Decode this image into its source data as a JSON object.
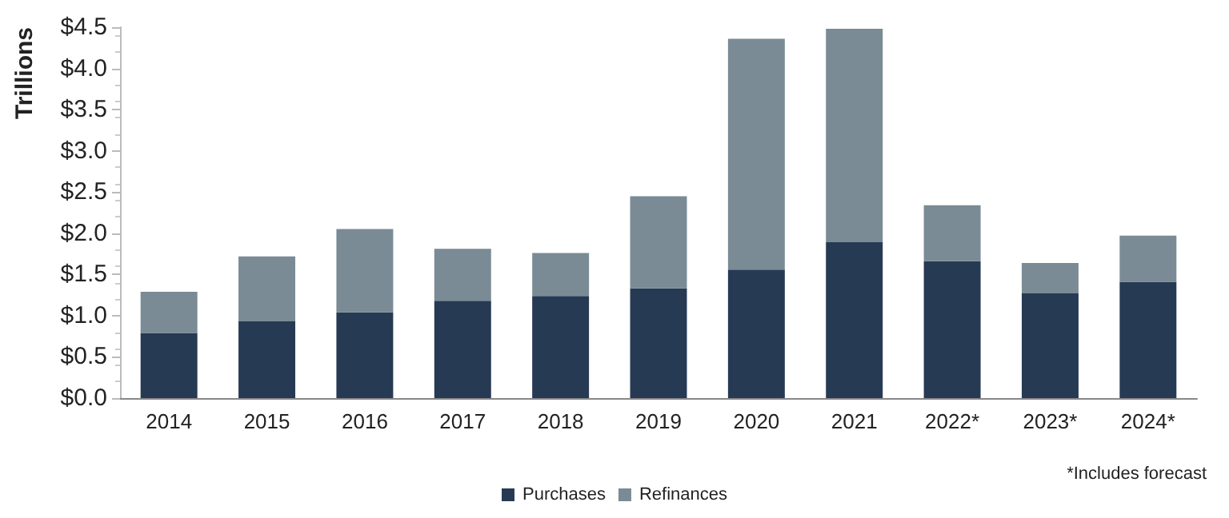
{
  "chart_data": {
    "type": "bar",
    "stacked": true,
    "ylabel": "Trillions",
    "categories": [
      "2014",
      "2015",
      "2016",
      "2017",
      "2018",
      "2019",
      "2020",
      "2021",
      "2022*",
      "2023*",
      "2024*"
    ],
    "series": [
      {
        "name": "Purchases",
        "color": "#263a54",
        "values": [
          0.79,
          0.93,
          1.04,
          1.18,
          1.24,
          1.33,
          1.56,
          1.89,
          1.66,
          1.27,
          1.41
        ]
      },
      {
        "name": "Refinances",
        "color": "#7a8b95",
        "values": [
          0.5,
          0.79,
          1.01,
          0.63,
          0.52,
          1.12,
          2.8,
          2.59,
          0.68,
          0.37,
          0.56
        ]
      }
    ],
    "ylim": [
      0,
      4.5
    ],
    "yticks": [
      {
        "value": 0,
        "label": "$0.0"
      },
      {
        "value": 0.5,
        "label": "$0.5"
      },
      {
        "value": 1,
        "label": "$1.0"
      },
      {
        "value": 1.5,
        "label": "$1.5"
      },
      {
        "value": 2,
        "label": "$2.0"
      },
      {
        "value": 2.5,
        "label": "$2.5"
      },
      {
        "value": 3,
        "label": "$3.0"
      },
      {
        "value": 3.5,
        "label": "$3.5"
      },
      {
        "value": 4,
        "label": "$4.0"
      },
      {
        "value": 4.5,
        "label": "$4.5"
      }
    ],
    "grid": false,
    "legend": "bottom",
    "annotations": [
      "*Includes forecast"
    ]
  }
}
